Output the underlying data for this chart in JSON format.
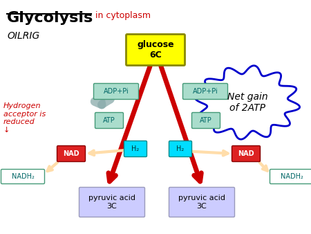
{
  "title_glycolysis": "Glycolysis",
  "title_sub": "in cytoplasm",
  "oilrig_text": "OILRIG",
  "hydrogen_text": "Hydrogen\nacceptor is\nreduced\n↓",
  "net_gain_text": "Net gain\nof 2ATP",
  "glucose_text": "glucose\n6C",
  "pyruvic1_text": "pyruvic acid\n3C",
  "pyruvic2_text": "pyruvic acid\n3C",
  "adppi_left": "ADP+Pi",
  "adppi_right": "ADP+Pi",
  "atp_left": "ATP",
  "atp_right": "ATP",
  "h2_left": "H₂",
  "h2_right": "H₂",
  "nad_left": "NAD",
  "nad_right": "NAD",
  "nadh2_left": "NADH₂",
  "nadh2_right": "NADH₂",
  "bg_color": "#ffffff",
  "glucose_box_color": "#ffff00",
  "pyruvic_box_color": "#ccccff",
  "adppi_box_color": "#aaddcc",
  "atp_box_color": "#aaddcc",
  "h2_box_color": "#00ddff",
  "nad_box_color": "#dd2222",
  "arrow_main_color": "#cc0000",
  "arrow_curve_color": "#88aaaa",
  "arrow_h2_color": "#ffddaa",
  "title_color": "#000000",
  "subtitle_color": "#cc0000",
  "oilrig_color": "#000000",
  "hydrogen_color": "#cc0000",
  "cloud_border_color": "#0000cc"
}
